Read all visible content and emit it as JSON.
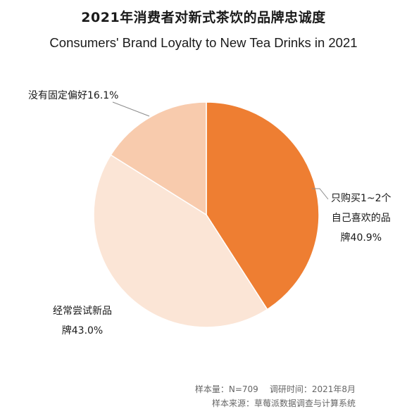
{
  "title_cn": "2021年消费者对新式茶饮的品牌忠诚度",
  "title_en": "Consumers' Brand Loyalty to New Tea Drinks in 2021",
  "chart_data": {
    "type": "pie",
    "slices": [
      {
        "label": "只购买1~2个自己喜欢的品牌",
        "lines": [
          "只购买1~2个",
          "自己喜欢的品",
          "牌40.9%"
        ],
        "value": 40.9,
        "color": "#ee7e32"
      },
      {
        "label": "经常尝试新品牌",
        "lines": [
          "经常尝试新品",
          "牌43.0%"
        ],
        "value": 43.0,
        "color": "#fbe5d6"
      },
      {
        "label": "没有固定偏好",
        "lines": [
          "没有固定偏好16.1%"
        ],
        "value": 16.1,
        "color": "#f8cbad"
      }
    ]
  },
  "footer": {
    "sample": "样本量：N=709",
    "period": "调研时间：2021年8月",
    "source": "样本来源：草莓派数据调查与计算系统"
  }
}
